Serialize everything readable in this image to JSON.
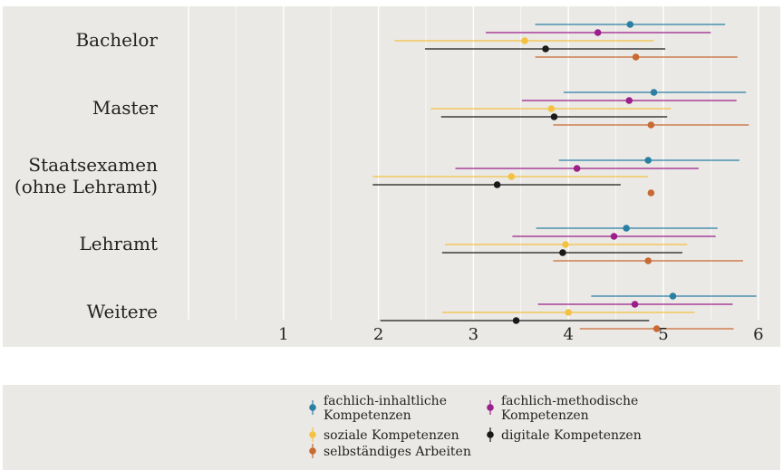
{
  "chart_data": {
    "type": "forest",
    "title": "",
    "xlabel": "",
    "ylabel": "",
    "xlim": [
      0,
      6.3
    ],
    "x_ticks": [
      1,
      2,
      3,
      4,
      5,
      6
    ],
    "x_tick_labels": [
      "1",
      "2",
      "3",
      "4",
      "5",
      "6"
    ],
    "grid": true,
    "legend_position": "bottom",
    "categories": [
      {
        "label": [
          "Bachelor"
        ]
      },
      {
        "label": [
          "Master"
        ]
      },
      {
        "label": [
          "Staatsexamen",
          "(ohne Lehramt)"
        ]
      },
      {
        "label": [
          "Lehramt"
        ]
      },
      {
        "label": [
          "Weitere"
        ]
      }
    ],
    "series": [
      {
        "name": [
          "fachlich-inhaltliche",
          "Kompetenzen"
        ],
        "color": "#2b7fa3",
        "shape": "circle",
        "values": [
          {
            "mean": 4.65,
            "low": 3.65,
            "high": 5.65
          },
          {
            "mean": 4.9,
            "low": 3.95,
            "high": 5.87
          },
          {
            "mean": 4.84,
            "low": 3.9,
            "high": 5.8
          },
          {
            "mean": 4.61,
            "low": 3.66,
            "high": 5.57
          },
          {
            "mean": 5.1,
            "low": 4.24,
            "high": 5.98
          }
        ]
      },
      {
        "name": [
          "fachlich-methodische",
          "Kompetenzen"
        ],
        "color": "#9b1f8a",
        "shape": "circle",
        "values": [
          {
            "mean": 4.31,
            "low": 3.13,
            "high": 5.5
          },
          {
            "mean": 4.64,
            "low": 3.51,
            "high": 5.77
          },
          {
            "mean": 4.09,
            "low": 2.81,
            "high": 5.37
          },
          {
            "mean": 4.48,
            "low": 3.41,
            "high": 5.55
          },
          {
            "mean": 4.7,
            "low": 3.68,
            "high": 5.73
          }
        ]
      },
      {
        "name": [
          "soziale Kompetenzen"
        ],
        "color": "#f4c242",
        "shape": "diamond",
        "values": [
          {
            "mean": 3.54,
            "low": 2.17,
            "high": 4.9
          },
          {
            "mean": 3.82,
            "low": 2.55,
            "high": 5.08
          },
          {
            "mean": 3.4,
            "low": 1.94,
            "high": 4.84
          },
          {
            "mean": 3.97,
            "low": 2.7,
            "high": 5.25
          },
          {
            "mean": 4.0,
            "low": 2.67,
            "high": 5.33
          }
        ]
      },
      {
        "name": [
          "digitale Kompetenzen"
        ],
        "color": "#1a1a1a",
        "shape": "diamond",
        "values": [
          {
            "mean": 3.76,
            "low": 2.49,
            "high": 5.02
          },
          {
            "mean": 3.85,
            "low": 2.66,
            "high": 5.04
          },
          {
            "mean": 3.25,
            "low": 1.94,
            "high": 4.55
          },
          {
            "mean": 3.94,
            "low": 2.67,
            "high": 5.2
          },
          {
            "mean": 3.45,
            "low": 2.02,
            "high": 4.85
          }
        ]
      },
      {
        "name": [
          "selbständiges Arbeiten"
        ],
        "color": "#c86a33",
        "shape": "circle",
        "values": [
          {
            "mean": 4.71,
            "low": 3.65,
            "high": 5.78
          },
          {
            "mean": 4.87,
            "low": 3.84,
            "high": 5.9
          },
          {
            "mean": 4.87,
            "low": null,
            "high": null
          },
          {
            "mean": 4.84,
            "low": 3.84,
            "high": 5.84
          },
          {
            "mean": 4.93,
            "low": 4.12,
            "high": 5.74
          }
        ]
      }
    ]
  }
}
